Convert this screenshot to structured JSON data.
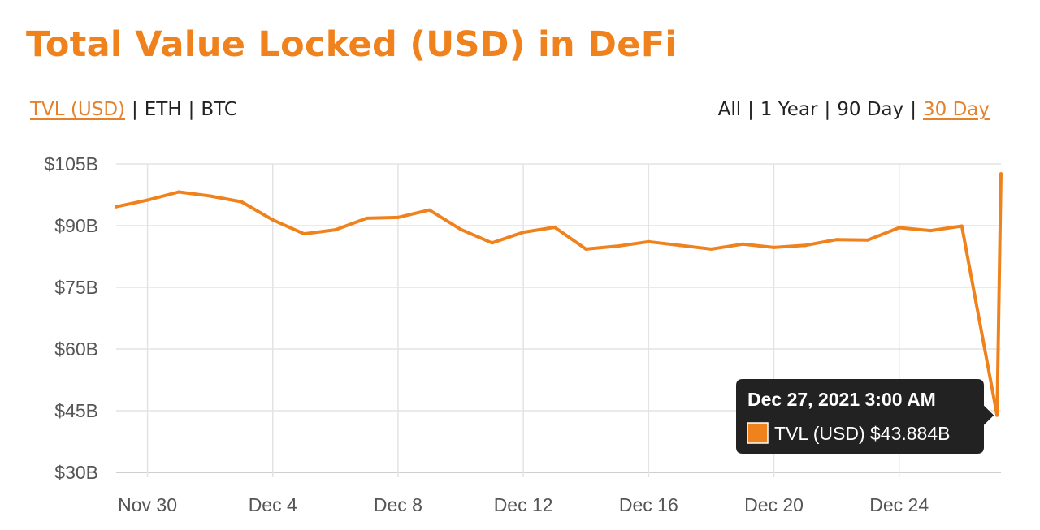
{
  "header": {
    "title": "Total Value Locked (USD) in DeFi"
  },
  "metric_tabs": [
    {
      "label": "TVL (USD)",
      "active": true
    },
    {
      "label": "ETH",
      "active": false
    },
    {
      "label": "BTC",
      "active": false
    }
  ],
  "range_tabs": [
    {
      "label": "All",
      "active": false
    },
    {
      "label": "1 Year",
      "active": false
    },
    {
      "label": "90 Day",
      "active": false
    },
    {
      "label": "30 Day",
      "active": true
    }
  ],
  "tooltip": {
    "title": "Dec 27, 2021 3:00 AM",
    "series_label": "TVL (USD)",
    "value_label": "$43.884B",
    "swatch_color": "#f0821e"
  },
  "colors": {
    "accent": "#f0821e",
    "line": "#f0821e",
    "grid": "#e3e3e3",
    "tooltip_bg": "#222222"
  },
  "chart_data": {
    "type": "line",
    "title": "Total Value Locked (USD) in DeFi",
    "xlabel": "",
    "ylabel": "",
    "y_tick_labels": [
      "$30B",
      "$45B",
      "$60B",
      "$75B",
      "$90B",
      "$105B"
    ],
    "y_ticks": [
      30,
      45,
      60,
      75,
      90,
      105
    ],
    "ylim": [
      30,
      105
    ],
    "x_tick_labels": [
      "Nov 30",
      "Dec 4",
      "Dec 8",
      "Dec 12",
      "Dec 16",
      "Dec 20",
      "Dec 24"
    ],
    "x_ticks": [
      "2021-11-30",
      "2021-12-04",
      "2021-12-08",
      "2021-12-12",
      "2021-12-16",
      "2021-12-20",
      "2021-12-24"
    ],
    "xlim": [
      "2021-11-29",
      "2021-12-27T06:00"
    ],
    "grid": true,
    "legend": "none",
    "series": [
      {
        "name": "TVL (USD)",
        "x": [
          "2021-11-29",
          "2021-11-30",
          "2021-12-01",
          "2021-12-02",
          "2021-12-03",
          "2021-12-04",
          "2021-12-05",
          "2021-12-06",
          "2021-12-07",
          "2021-12-08",
          "2021-12-09",
          "2021-12-10",
          "2021-12-11",
          "2021-12-12",
          "2021-12-13",
          "2021-12-14",
          "2021-12-15",
          "2021-12-16",
          "2021-12-17",
          "2021-12-18",
          "2021-12-19",
          "2021-12-20",
          "2021-12-21",
          "2021-12-22",
          "2021-12-23",
          "2021-12-24",
          "2021-12-25",
          "2021-12-26",
          "2021-12-27T03:00",
          "2021-12-27T06:00"
        ],
        "values": [
          94.6,
          96.2,
          98.2,
          97.2,
          95.8,
          91.4,
          88.0,
          89.0,
          91.8,
          92.0,
          93.8,
          89.1,
          85.8,
          88.4,
          89.6,
          84.3,
          85.0,
          86.1,
          85.2,
          84.3,
          85.5,
          84.7,
          85.2,
          86.6,
          86.5,
          89.5,
          88.8,
          89.9,
          43.884,
          102.6
        ]
      }
    ]
  }
}
